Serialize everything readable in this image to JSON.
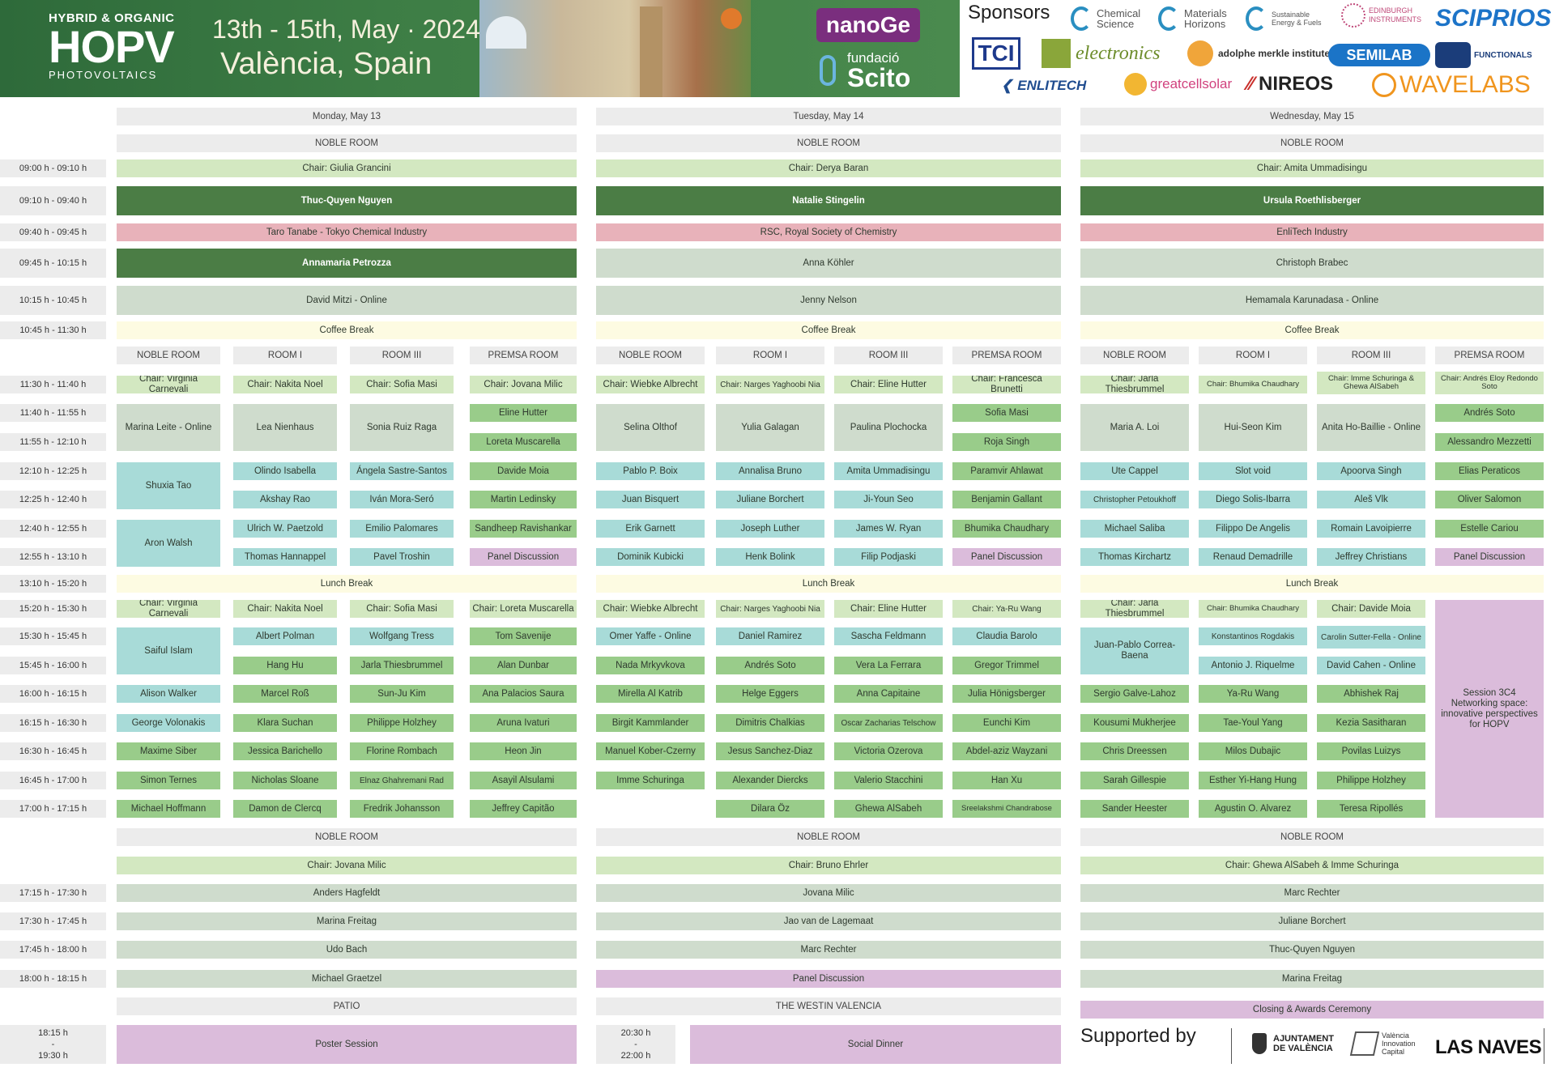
{
  "banner": {
    "org_line1": "HYBRID & ORGANIC",
    "org_line2": "HOPV",
    "org_line3": "PHOTOVOLTAICS",
    "dates": "13th - 15th, May · 2024",
    "city": "València, Spain",
    "nanoge": "nanoGe",
    "fundacio": "fundació",
    "scito": "Scito"
  },
  "sponsors": {
    "title": "Sponsors",
    "items": [
      "Chemical Science",
      "Materials Horizons",
      "Sustainable Energy & Fuels",
      "EDINBURGH INSTRUMENTS",
      "SCIPRIOS",
      "TCI",
      "electronics",
      "adolphe merkle institute",
      "SEMILAB",
      "FUNCTIONALS",
      "ENLITECH",
      "greatcellsolar",
      "NIREOS",
      "WAVELABS"
    ]
  },
  "days": [
    "Monday, May 13",
    "Tuesday, May 14",
    "Wednesday, May 15"
  ],
  "room_noble": "NOBLE ROOM",
  "rooms": [
    "NOBLE ROOM",
    "ROOM I",
    "ROOM III",
    "PREMSA ROOM"
  ],
  "times": {
    "t0900": "09:00 h - 09:10 h",
    "t0910": "09:10 h - 09:40 h",
    "t0940": "09:40 h - 09:45 h",
    "t0945": "09:45 h - 10:15 h",
    "t1015": "10:15 h - 10:45 h",
    "t1045": "10:45 h - 11:30 h",
    "t1130": "11:30 h - 11:40 h",
    "t1140": "11:40 h - 11:55 h",
    "t1155": "11:55 h - 12:10 h",
    "t1210": "12:10 h - 12:25 h",
    "t1225": "12:25 h - 12:40 h",
    "t1240": "12:40 h - 12:55 h",
    "t1255": "12:55 h - 13:10 h",
    "t1310": "13:10 h - 15:20 h",
    "t1520": "15:20 h - 15:30 h",
    "t1530": "15:30 h - 15:45 h",
    "t1545": "15:45 h - 16:00 h",
    "t1600": "16:00 h - 16:15 h",
    "t1615": "16:15 h - 16:30 h",
    "t1630": "16:30 h - 16:45 h",
    "t1645": "16:45 h - 17:00 h",
    "t1700": "17:00 h - 17:15 h",
    "t1715": "17:15 h - 17:30 h",
    "t1730": "17:30 h - 17:45 h",
    "t1745": "17:45 h - 18:00 h",
    "t1800": "18:00 h - 18:15 h",
    "t1815a": "18:15 h",
    "t1815b": "-",
    "t1815c": "19:30 h",
    "t2030a": "20:30 h",
    "t2030b": "-",
    "t2030c": "22:00 h"
  },
  "mon": {
    "chair": "Chair: Giulia Grancini",
    "k1": "Thuc-Quyen Nguyen",
    "ind": "Taro Tanabe - Tokyo Chemical Industry",
    "k2": "Annamaria Petrozza",
    "t1": "David Mitzi - Online",
    "coffee": "Coffee Break",
    "am": {
      "chairs": [
        "Chair: Virginia Carnevali",
        "Chair: Nakita Noel",
        "Chair: Sofia Masi",
        "Chair: Jovana Milic"
      ],
      "noble": [
        "Marina Leite - Online",
        "Shuxia Tao",
        "Aron Walsh"
      ],
      "room1": [
        "Lea Nienhaus",
        "Olindo Isabella",
        "Akshay Rao",
        "Ulrich W. Paetzold",
        "Thomas Hannappel"
      ],
      "room3": [
        "Sonia Ruiz Raga",
        "Ángela Sastre-Santos",
        "Iván Mora-Seró",
        "Emilio Palomares",
        "Pavel Troshin"
      ],
      "premsa": [
        "Eline Hutter",
        "Loreta Muscarella",
        "Davide Moia",
        "Martin Ledinsky",
        "Sandheep Ravishankar",
        "Panel Discussion"
      ]
    },
    "lunch": "Lunch Break",
    "pm": {
      "chairs": [
        "Chair: Virginia Carnevali",
        "Chair: Nakita Noel",
        "Chair: Sofia Masi",
        "Chair: Loreta Muscarella"
      ],
      "noble": [
        "Saiful Islam",
        "Alison Walker",
        "George Volonakis",
        "Maxime Siber",
        "Simon Ternes",
        "Michael Hoffmann"
      ],
      "room1": [
        "Albert Polman",
        "Hang Hu",
        "Marcel Roß",
        "Klara Suchan",
        "Jessica Barichello",
        "Nicholas Sloane",
        "Damon de Clercq"
      ],
      "room3": [
        "Wolfgang Tress",
        "Jarla Thiesbrummel",
        "Sun-Ju Kim",
        "Philippe Holzhey",
        "Florine Rombach",
        "Elnaz Ghahremani Rad",
        "Fredrik Johansson"
      ],
      "premsa": [
        "Tom Savenije",
        "Alan Dunbar",
        "Ana Palacios Saura",
        "Aruna Ivaturi",
        "Heon Jin",
        "Asayil Alsulami",
        "Jeffrey Capitão"
      ]
    },
    "eve_chair": "Chair: Jovana Milic",
    "eve": [
      "Anders Hagfeldt",
      "Marina Freitag",
      "Udo Bach",
      "Michael Graetzel"
    ],
    "venue": "PATIO",
    "final": "Poster Session"
  },
  "tue": {
    "chair": "Chair: Derya Baran",
    "k1": "Natalie Stingelin",
    "ind": "RSC, Royal Society of Chemistry",
    "k2": "Anna Köhler",
    "t1": "Jenny Nelson",
    "coffee": "Coffee Break",
    "am": {
      "chairs": [
        "Chair: Wiebke Albrecht",
        "Chair: Narges Yaghoobi Nia",
        "Chair: Eline Hutter",
        "Chair: Francesca Brunetti"
      ],
      "noble": [
        "Selina Olthof",
        "Pablo P. Boix",
        "Juan Bisquert",
        "Erik Garnett",
        "Dominik Kubicki"
      ],
      "room1": [
        "Yulia Galagan",
        "Annalisa Bruno",
        "Juliane Borchert",
        "Joseph Luther",
        "Henk Bolink"
      ],
      "room3": [
        "Paulina Plochocka",
        "Amita Ummadisingu",
        "Ji-Youn Seo",
        "James W. Ryan",
        "Filip Podjaski"
      ],
      "premsa": [
        "Sofia Masi",
        "Roja Singh",
        "Paramvir Ahlawat",
        "Benjamin Gallant",
        "Bhumika Chaudhary",
        "Panel Discussion"
      ]
    },
    "lunch": "Lunch Break",
    "pm": {
      "chairs": [
        "Chair: Wiebke Albrecht",
        "Chair: Narges Yaghoobi Nia",
        "Chair: Eline Hutter",
        "Chair: Ya-Ru Wang"
      ],
      "noble": [
        "Omer Yaffe - Online",
        "Nada Mrkyvkova",
        "Mirella Al Katrib",
        "Birgit Kammlander",
        "Manuel Kober-Czerny",
        "Imme Schuringa"
      ],
      "room1": [
        "Daniel Ramirez",
        "Andrés Soto",
        "Helge Eggers",
        "Dimitris Chalkias",
        "Jesus Sanchez-Diaz",
        "Alexander Diercks",
        "Dilara Öz"
      ],
      "room3": [
        "Sascha Feldmann",
        "Vera La Ferrara",
        "Anna Capitaine",
        "Oscar Zacharias Telschow",
        "Victoria Ozerova",
        "Valerio Stacchini",
        "Ghewa AlSabeh"
      ],
      "premsa": [
        "Claudia Barolo",
        "Gregor Trimmel",
        "Julia Hönigsberger",
        "Eunchi Kim",
        "Abdel-aziz Wayzani",
        "Han Xu",
        "Sreelakshmi Chandrabose"
      ]
    },
    "eve_chair": "Chair: Bruno Ehrler",
    "eve": [
      "Jovana Milic",
      "Jao van de Lagemaat",
      "Marc Rechter",
      "Panel Discussion"
    ],
    "venue": "THE WESTIN VALENCIA",
    "final": "Social Dinner"
  },
  "wed": {
    "chair": "Chair: Amita Ummadisingu",
    "k1": "Ursula Roethlisberger",
    "ind": "EnliTech Industry",
    "k2": "Christoph Brabec",
    "t1": "Hemamala Karunadasa - Online",
    "coffee": "Coffee Break",
    "am": {
      "chairs": [
        "Chair: Jarla Thiesbrummel",
        "Chair: Bhumika Chaudhary",
        "Chair: Imme Schuringa & Ghewa AlSabeh",
        "Chair: Andrés Eloy Redondo Soto"
      ],
      "noble": [
        "Maria A. Loi",
        "Ute Cappel",
        "Christopher Petoukhoff",
        "Michael Saliba",
        "Thomas Kirchartz"
      ],
      "room1": [
        "Hui-Seon Kim",
        "Slot void",
        "Diego Solis-Ibarra",
        "Filippo De Angelis",
        "Renaud Demadrille"
      ],
      "room3": [
        "Anita Ho-Baillie - Online",
        "Apoorva Singh",
        "Aleš Vlk",
        "Romain Lavoipierre",
        "Jeffrey Christians"
      ],
      "premsa": [
        "Andrés Soto",
        "Alessandro Mezzetti",
        "Elias Peraticos",
        "Oliver Salomon",
        "Estelle Cariou",
        "Panel Discussion"
      ]
    },
    "lunch": "Lunch Break",
    "pm": {
      "chairs": [
        "Chair: Jarla Thiesbrummel",
        "Chair: Bhumika Chaudhary",
        "Chair: Davide Moia"
      ],
      "noble": [
        "Juan-Pablo Correa-Baena",
        "Sergio Galve-Lahoz",
        "Kousumi Mukherjee",
        "Chris Dreessen",
        "Sarah Gillespie",
        "Sander Heester"
      ],
      "room1": [
        "Konstantinos Rogdakis",
        "Antonio J. Riquelme",
        "Ya-Ru Wang",
        "Tae-Youl Yang",
        "Milos Dubajic",
        "Esther Yi-Hang Hung",
        "Agustin O. Alvarez"
      ],
      "room3": [
        "Carolin Sutter-Fella - Online",
        "David Cahen - Online",
        "Abhishek Raj",
        "Kezia Sasitharan",
        "Povilas Luizys",
        "Philippe Holzhey",
        "Teresa Ripollés"
      ],
      "session": "Session 3C4 Networking space: innovative perspectives for HOPV"
    },
    "eve_chair": "Chair: Ghewa AlSabeh & Imme Schuringa",
    "eve": [
      "Marc Rechter",
      "Juliane Borchert",
      "Thuc-Quyen Nguyen",
      "Marina Freitag"
    ],
    "final": "Closing & Awards Ceremony"
  },
  "supported": {
    "title": "Supported by",
    "ajuntament": "AJUNTAMENT DE VALÈNCIA",
    "innovation": "València Innovation Capital",
    "lasnaves": "LAS NAVES"
  },
  "colors": {
    "dark_green": "#4b7d45",
    "sage": "#cfdccd",
    "light_green": "#d3e8c1",
    "teal": "#a8dbd8",
    "green": "#99cc8a",
    "purple": "#dbbcdb",
    "pink": "#e8b2ba",
    "yellow": "#fdfbe2"
  }
}
